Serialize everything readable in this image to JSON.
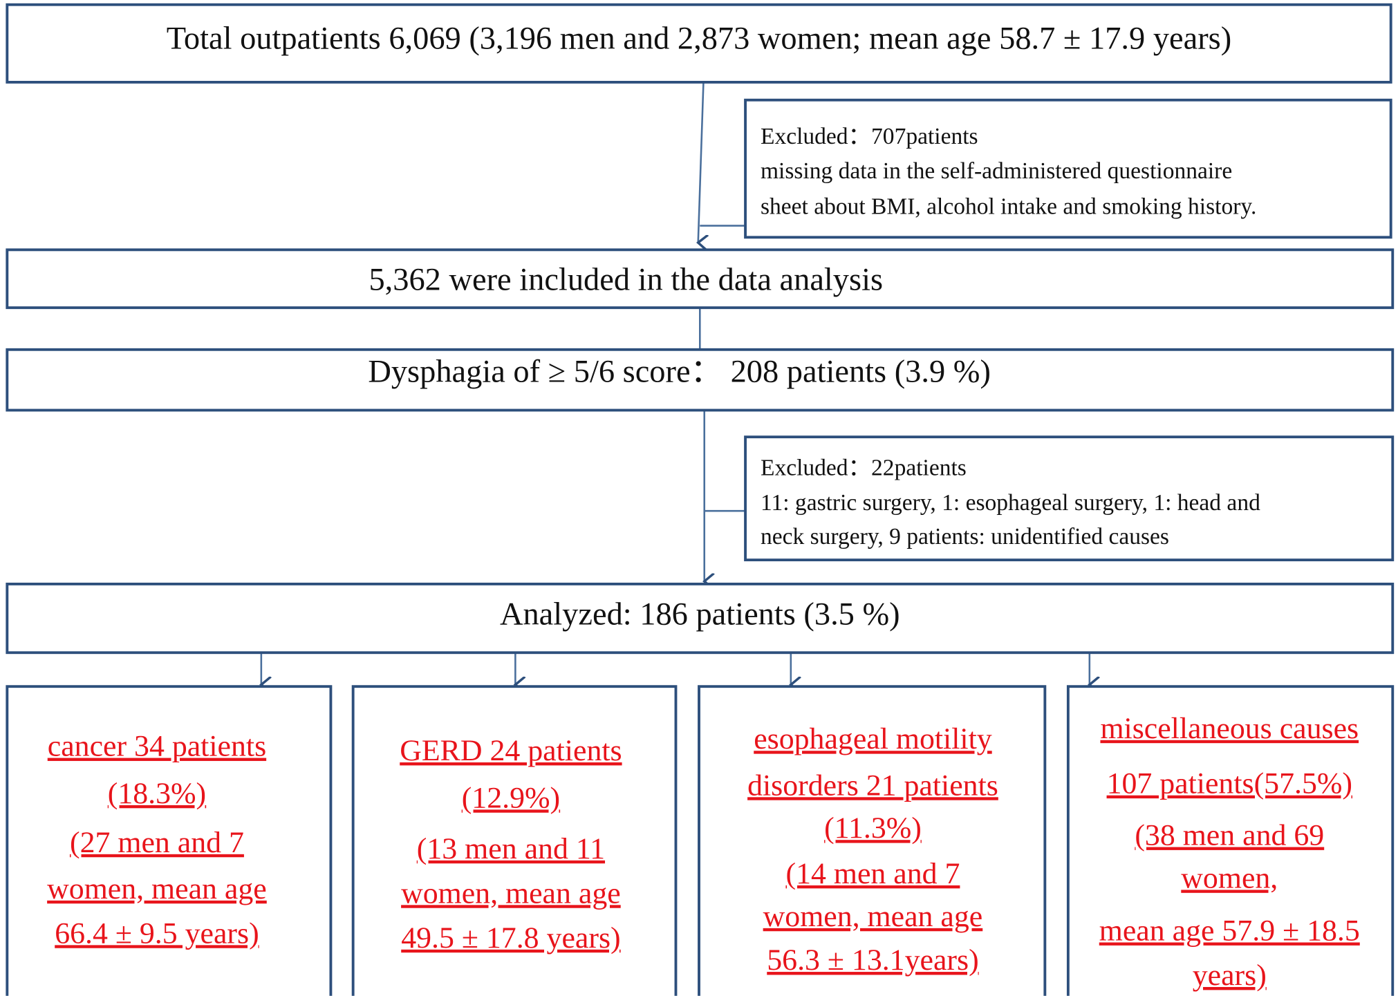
{
  "total": "Total outpatients 6,069 (3,196 men and 2,873 women; mean age 58.7 ± 17.9 years)",
  "excluded_1": {
    "lines": [
      "Excluded：707patients",
      "missing data in the self-administered questionnaire",
      "sheet about BMI, alcohol intake and smoking history."
    ]
  },
  "included": "5,362 were included in the data analysis",
  "dysphagia": "Dysphagia of ≥ 5/6 score： 208 patients (3.9 %)",
  "excluded_2": {
    "lines": [
      "Excluded：22patients",
      "11: gastric surgery, 1: esophageal surgery, 1: head and",
      "neck surgery, 9 patients: unidentified causes"
    ]
  },
  "analyzed": "Analyzed: 186 patients (3.5 %)",
  "groups": [
    {
      "lines": [
        "cancer 34 patients",
        "(18.3%)",
        "(27 men and 7",
        "women, mean age",
        "66.4 ± 9.5 years)"
      ]
    },
    {
      "lines": [
        "GERD 24 patients",
        "(12.9%)",
        "(13 men and 11",
        "women, mean age",
        "49.5 ± 17.8 years)"
      ]
    },
    {
      "lines": [
        "esophageal motility",
        "disorders 21 patients",
        "(11.3%)",
        "(14 men and 7",
        "women, mean age",
        "56.3 ± 13.1years)"
      ]
    },
    {
      "lines": [
        "miscellaneous causes",
        "107 patients(57.5%)",
        "(38 men and 69",
        "women,",
        "mean age 57.9 ± 18.5",
        "years)"
      ]
    }
  ]
}
